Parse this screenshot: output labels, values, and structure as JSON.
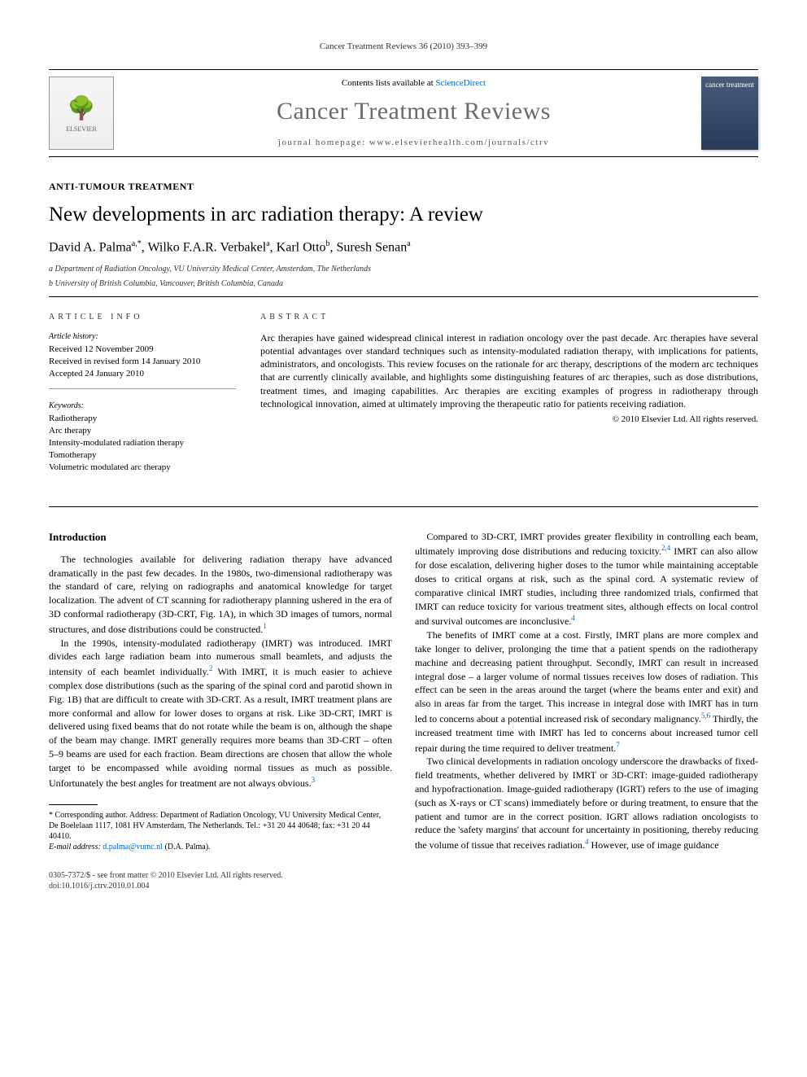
{
  "running_head": "Cancer Treatment Reviews 36 (2010) 393–399",
  "masthead": {
    "contents_prefix": "Contents lists available at ",
    "contents_link": "ScienceDirect",
    "journal_name": "Cancer Treatment Reviews",
    "homepage_prefix": "journal homepage: ",
    "homepage_url": "www.elsevierhealth.com/journals/ctrv",
    "publisher_label": "ELSEVIER",
    "cover_label": "cancer treatment"
  },
  "section_tag": "ANTI-TUMOUR TREATMENT",
  "title": "New developments in arc radiation therapy: A review",
  "authors_html_parts": {
    "a1_name": "David A. Palma",
    "a1_sup": "a,*",
    "a2_name": "Wilko F.A.R. Verbakel",
    "a2_sup": "a",
    "a3_name": "Karl Otto",
    "a3_sup": "b",
    "a4_name": "Suresh Senan",
    "a4_sup": "a"
  },
  "affiliations": {
    "a": "a Department of Radiation Oncology, VU University Medical Center, Amsterdam, The Netherlands",
    "b": "b University of British Columbia, Vancouver, British Columbia, Canada"
  },
  "info": {
    "head": "ARTICLE INFO",
    "history_title": "Article history:",
    "history_l1": "Received 12 November 2009",
    "history_l2": "Received in revised form 14 January 2010",
    "history_l3": "Accepted 24 January 2010",
    "keywords_title": "Keywords:",
    "kw1": "Radiotherapy",
    "kw2": "Arc therapy",
    "kw3": "Intensity-modulated radiation therapy",
    "kw4": "Tomotherapy",
    "kw5": "Volumetric modulated arc therapy"
  },
  "abstract": {
    "head": "ABSTRACT",
    "text": "Arc therapies have gained widespread clinical interest in radiation oncology over the past decade. Arc therapies have several potential advantages over standard techniques such as intensity-modulated radiation therapy, with implications for patients, administrators, and oncologists. This review focuses on the rationale for arc therapy, descriptions of the modern arc techniques that are currently clinically available, and highlights some distinguishing features of arc therapies, such as dose distributions, treatment times, and imaging capabilities. Arc therapies are exciting examples of progress in radiotherapy through technological innovation, aimed at ultimately improving the therapeutic ratio for patients receiving radiation.",
    "copyright": "© 2010 Elsevier Ltd. All rights reserved."
  },
  "body": {
    "intro_head": "Introduction",
    "left_p1": "The technologies available for delivering radiation therapy have advanced dramatically in the past few decades. In the 1980s, two-dimensional radiotherapy was the standard of care, relying on radiographs and anatomical knowledge for target localization. The advent of CT scanning for radiotherapy planning ushered in the era of 3D conformal radiotherapy (3D-CRT, Fig. 1A), in which 3D images of tumors, normal structures, and dose distributions could be constructed.",
    "left_p1_sup": "1",
    "left_p2": "In the 1990s, intensity-modulated radiotherapy (IMRT) was introduced. IMRT divides each large radiation beam into numerous small beamlets, and adjusts the intensity of each beamlet individually.",
    "left_p2_sup": "2",
    "left_p2b": " With IMRT, it is much easier to achieve complex dose distributions (such as the sparing of the spinal cord and parotid shown in Fig. 1B) that are difficult to create with 3D-CRT. As a result, IMRT treatment plans are more conformal and allow for lower doses to organs at risk. Like 3D-CRT, IMRT is delivered using fixed beams that do not rotate while the beam is on, although the shape of the beam may change. IMRT generally requires more beams than 3D-CRT – often 5–9 beams are used for each fraction. Beam directions are chosen that allow the whole target to be encompassed while avoiding normal tissues as much as possible. Unfortunately the best angles for treatment are not always obvious.",
    "left_p2b_sup": "3",
    "right_p1": "Compared to 3D-CRT, IMRT provides greater flexibility in controlling each beam, ultimately improving dose distributions and reducing toxicity.",
    "right_p1_sup": "2,4",
    "right_p1b": " IMRT can also allow for dose escalation, delivering higher doses to the tumor while maintaining acceptable doses to critical organs at risk, such as the spinal cord. A systematic review of comparative clinical IMRT studies, including three randomized trials, confirmed that IMRT can reduce toxicity for various treatment sites, although effects on local control and survival outcomes are inconclusive.",
    "right_p1b_sup": "4",
    "right_p2": "The benefits of IMRT come at a cost. Firstly, IMRT plans are more complex and take longer to deliver, prolonging the time that a patient spends on the radiotherapy machine and decreasing patient throughput. Secondly, IMRT can result in increased integral dose – a larger volume of normal tissues receives low doses of radiation. This effect can be seen in the areas around the target (where the beams enter and exit) and also in areas far from the target. This increase in integral dose with IMRT has in turn led to concerns about a potential increased risk of secondary malignancy.",
    "right_p2_sup": "5,6",
    "right_p2b": " Thirdly, the increased treatment time with IMRT has led to concerns about increased tumor cell repair during the time required to deliver treatment.",
    "right_p2b_sup": "7",
    "right_p3": "Two clinical developments in radiation oncology underscore the drawbacks of fixed-field treatments, whether delivered by IMRT or 3D-CRT: image-guided radiotherapy and hypofractionation. Image-guided radiotherapy (IGRT) refers to the use of imaging (such as X-rays or CT scans) immediately before or during treatment, to ensure that the patient and tumor are in the correct position. IGRT allows radiation oncologists to reduce the 'safety margins' that account for uncertainty in positioning, thereby reducing the volume of tissue that receives radiation.",
    "right_p3_sup": "4",
    "right_p3b": " However, use of image guidance"
  },
  "footnote": {
    "corr": "* Corresponding author. Address: Department of Radiation Oncology, VU University Medical Center, De Boelelaan 1117, 1081 HV Amsterdam, The Netherlands. Tel.: +31 20 44 40648; fax: +31 20 44 40410.",
    "email_label": "E-mail address: ",
    "email": "d.palma@vumc.nl",
    "email_suffix": " (D.A. Palma)."
  },
  "footer": {
    "line1": "0305-7372/$ - see front matter © 2010 Elsevier Ltd. All rights reserved.",
    "line2": "doi:10.1016/j.ctrv.2010.01.004"
  },
  "colors": {
    "link": "#0066cc",
    "journal_gray": "#6b6b6b",
    "text": "#000000",
    "rule": "#000000"
  },
  "typography": {
    "body_pt": 12,
    "title_pt": 25,
    "journal_pt": 30,
    "authors_pt": 16,
    "small_pt": 10
  }
}
